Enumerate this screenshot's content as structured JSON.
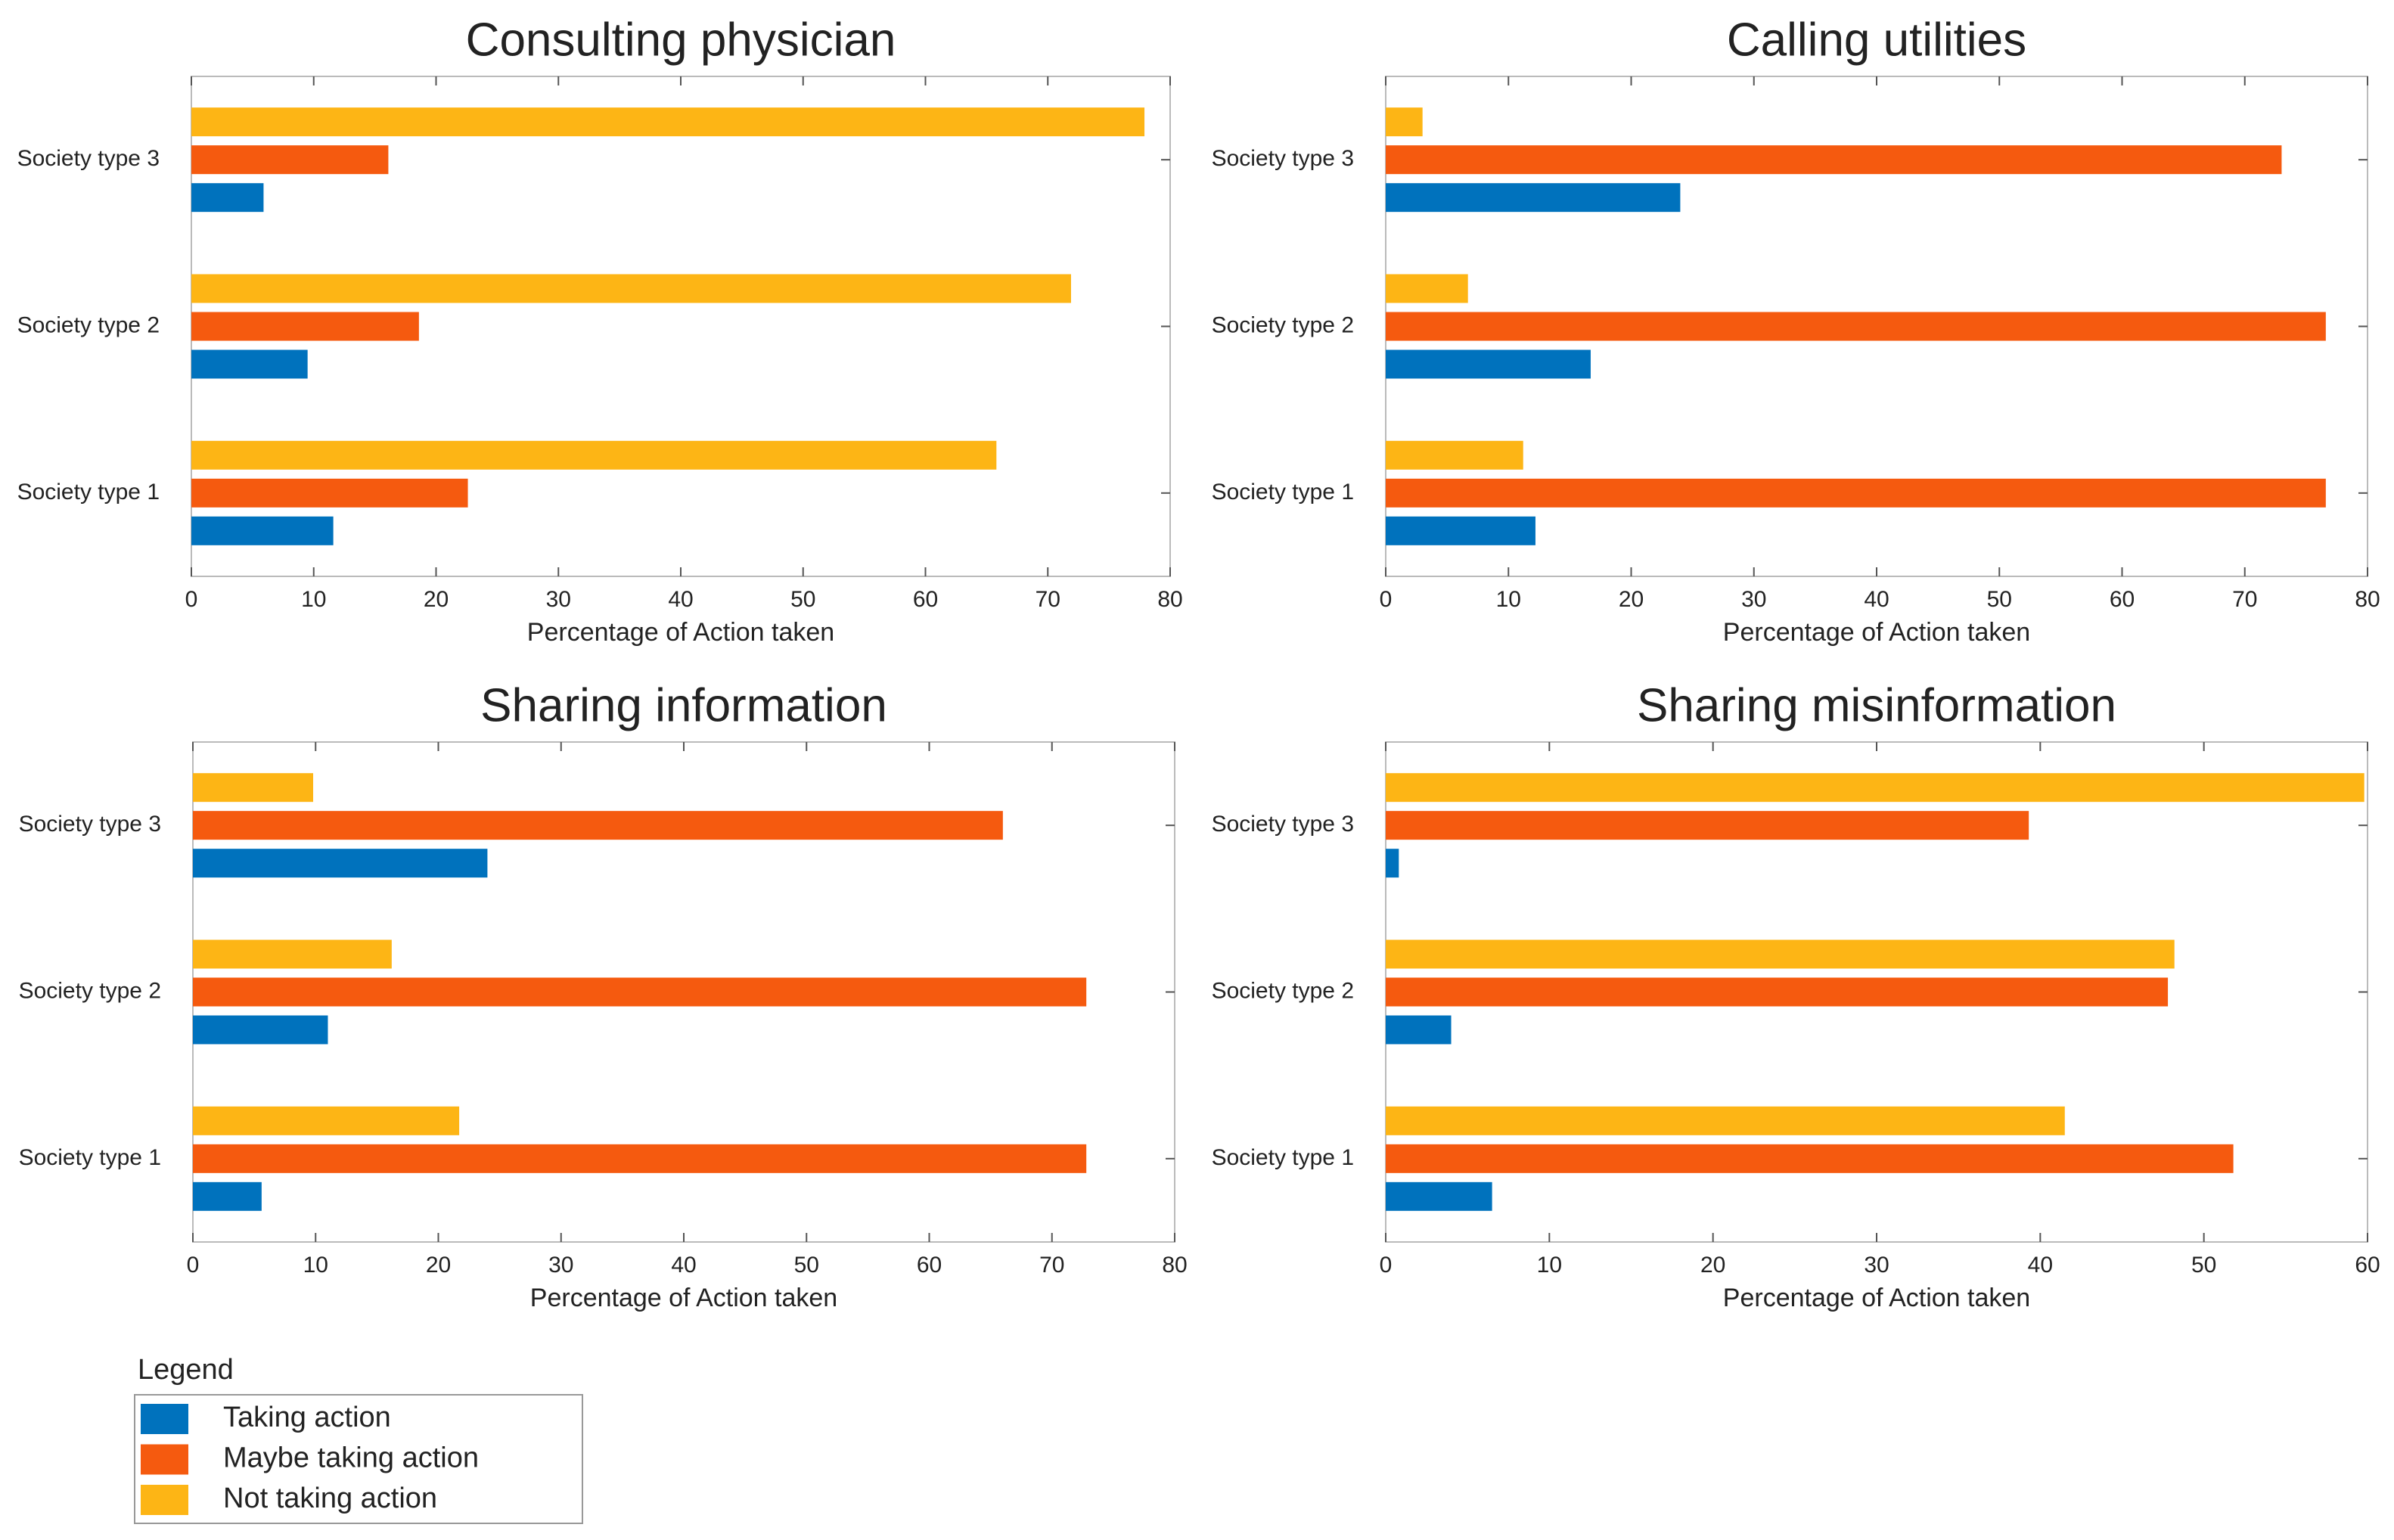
{
  "legend_title": "Legend",
  "chart_data": [
    {
      "type": "bar",
      "orientation": "horizontal",
      "title": "Consulting physician",
      "xlabel": "Percentage of Action taken",
      "categories": [
        "Society type 1",
        "Society type 2",
        "Society type 3"
      ],
      "series": [
        {
          "name": "Taking action",
          "color": "#0072bd",
          "values": [
            11.6,
            9.5,
            5.9
          ]
        },
        {
          "name": "Maybe taking action",
          "color": "#f55a0f",
          "values": [
            22.6,
            18.6,
            16.1
          ]
        },
        {
          "name": "Not taking action",
          "color": "#fdb515",
          "values": [
            65.8,
            71.9,
            77.9
          ]
        }
      ],
      "xlim": [
        0,
        80
      ],
      "xticks": [
        0,
        10,
        20,
        30,
        40,
        50,
        60,
        70,
        80
      ]
    },
    {
      "type": "bar",
      "orientation": "horizontal",
      "title": "Calling utilities",
      "xlabel": "Percentage of Action taken",
      "categories": [
        "Society type 1",
        "Society type 2",
        "Society type 3"
      ],
      "series": [
        {
          "name": "Taking action",
          "color": "#0072bd",
          "values": [
            12.2,
            16.7,
            24
          ]
        },
        {
          "name": "Maybe taking action",
          "color": "#f55a0f",
          "values": [
            76.6,
            76.6,
            73
          ]
        },
        {
          "name": "Not taking action",
          "color": "#fdb515",
          "values": [
            11.2,
            6.7,
            3
          ]
        }
      ],
      "xlim": [
        0,
        80
      ],
      "xticks": [
        0,
        10,
        20,
        30,
        40,
        50,
        60,
        70,
        80
      ]
    },
    {
      "type": "bar",
      "orientation": "horizontal",
      "title": "Sharing information",
      "xlabel": "Percentage of Action taken",
      "categories": [
        "Society type 1",
        "Society type 2",
        "Society type 3"
      ],
      "series": [
        {
          "name": "Taking action",
          "color": "#0072bd",
          "values": [
            5.6,
            11,
            24
          ]
        },
        {
          "name": "Maybe taking action",
          "color": "#f55a0f",
          "values": [
            72.8,
            72.8,
            66
          ]
        },
        {
          "name": "Not taking action",
          "color": "#fdb515",
          "values": [
            21.7,
            16.2,
            9.8
          ]
        }
      ],
      "xlim": [
        0,
        80
      ],
      "xticks": [
        0,
        10,
        20,
        30,
        40,
        50,
        60,
        70,
        80
      ]
    },
    {
      "type": "bar",
      "orientation": "horizontal",
      "title": "Sharing misinformation",
      "xlabel": "Percentage of Action taken",
      "categories": [
        "Society type 1",
        "Society type 2",
        "Society type 3"
      ],
      "series": [
        {
          "name": "Taking action",
          "color": "#0072bd",
          "values": [
            6.5,
            4,
            0.8
          ]
        },
        {
          "name": "Maybe taking action",
          "color": "#f55a0f",
          "values": [
            51.8,
            47.8,
            39.3
          ]
        },
        {
          "name": "Not taking action",
          "color": "#fdb515",
          "values": [
            41.5,
            48.2,
            59.8
          ]
        }
      ],
      "xlim": [
        0,
        60
      ],
      "xticks": [
        0,
        10,
        20,
        30,
        40,
        50,
        60
      ]
    }
  ]
}
